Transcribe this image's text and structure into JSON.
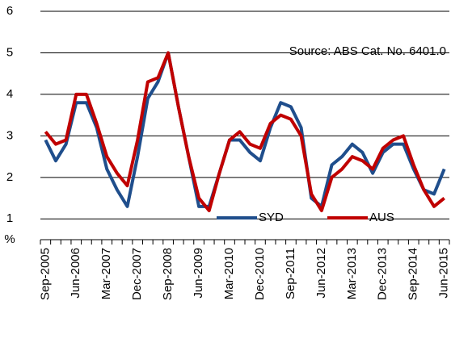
{
  "chart_data": {
    "type": "line",
    "annotation": "Source: ABS Cat. No. 6401.0",
    "ylabel": "%",
    "categories": [
      "Sep-2005",
      null,
      null,
      "Jun-2006",
      null,
      null,
      "Mar-2007",
      null,
      null,
      "Dec-2007",
      null,
      null,
      "Sep-2008",
      null,
      null,
      "Jun-2009",
      null,
      null,
      "Mar-2010",
      null,
      null,
      "Dec-2010",
      null,
      null,
      "Sep-2011",
      null,
      null,
      "Jun-2012",
      null,
      null,
      "Mar-2013",
      null,
      null,
      "Dec-2013",
      null,
      null,
      "Sep-2014",
      null,
      null,
      "Jun-2015"
    ],
    "series": [
      {
        "name": "SYD",
        "color": "#1f4e8c",
        "values": [
          2.9,
          2.4,
          2.8,
          3.8,
          3.8,
          3.2,
          2.2,
          1.7,
          1.3,
          2.5,
          3.9,
          4.3,
          5.0,
          3.7,
          2.5,
          1.3,
          1.3,
          2.1,
          2.9,
          2.9,
          2.6,
          2.4,
          3.2,
          3.8,
          3.7,
          3.2,
          1.5,
          1.3,
          2.3,
          2.5,
          2.8,
          2.6,
          2.1,
          2.6,
          2.8,
          2.8,
          2.2,
          1.7,
          1.6,
          2.2
        ]
      },
      {
        "name": "AUS",
        "color": "#c00000",
        "values": [
          3.1,
          2.8,
          2.9,
          4.0,
          4.0,
          3.3,
          2.5,
          2.1,
          1.8,
          2.9,
          4.3,
          4.4,
          5.0,
          3.7,
          2.5,
          1.5,
          1.2,
          2.1,
          2.9,
          3.1,
          2.8,
          2.7,
          3.3,
          3.5,
          3.4,
          3.0,
          1.6,
          1.2,
          2.0,
          2.2,
          2.5,
          2.4,
          2.2,
          2.7,
          2.9,
          3.0,
          2.3,
          1.7,
          1.3,
          1.5
        ]
      }
    ],
    "ylim": [
      0.5,
      6
    ],
    "yticks": [
      1,
      2,
      3,
      4,
      5,
      6
    ],
    "grid": true,
    "legend": "bottom-right"
  }
}
